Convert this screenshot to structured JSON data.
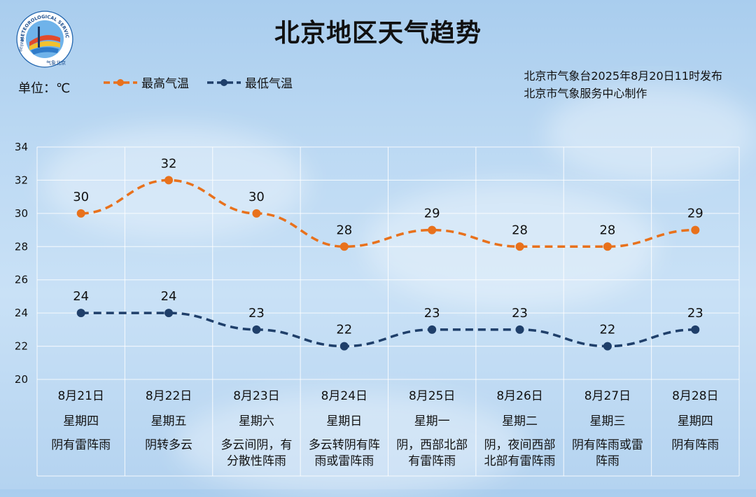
{
  "title": "北京地区天气趋势",
  "unit_label": "单位：℃",
  "legend": {
    "high": "最高气温",
    "low": "最低气温"
  },
  "info": {
    "line1": "北京市气象台2025年8月20日11时发布",
    "line2": "北京市气象服务中心制作"
  },
  "logo": {
    "ring_text": "METEOROLOGICAL SERVICE",
    "bottom_text": "气象北京",
    "left_text": "BEIJING"
  },
  "colors": {
    "high": "#e8711c",
    "low": "#1f3f6a",
    "grid": "#ffffff"
  },
  "days": [
    {
      "date": "8月21日",
      "week": "星期四",
      "weather": [
        "阴有雷阵雨"
      ]
    },
    {
      "date": "8月22日",
      "week": "星期五",
      "weather": [
        "阴转多云"
      ]
    },
    {
      "date": "8月23日",
      "week": "星期六",
      "weather": [
        "多云间阴，有",
        "分散性阵雨"
      ]
    },
    {
      "date": "8月24日",
      "week": "星期日",
      "weather": [
        "多云转阴有阵",
        "雨或雷阵雨"
      ]
    },
    {
      "date": "8月25日",
      "week": "星期一",
      "weather": [
        "阴，西部北部",
        "有雷阵雨"
      ]
    },
    {
      "date": "8月26日",
      "week": "星期二",
      "weather": [
        "阴，夜间西部",
        "北部有雷阵雨"
      ]
    },
    {
      "date": "8月27日",
      "week": "星期三",
      "weather": [
        "阴有阵雨或雷",
        "阵雨"
      ]
    },
    {
      "date": "8月28日",
      "week": "星期四",
      "weather": [
        "阴有阵雨"
      ]
    }
  ],
  "chart_data": {
    "type": "line",
    "categories": [
      "8月21日",
      "8月22日",
      "8月23日",
      "8月24日",
      "8月25日",
      "8月26日",
      "8月27日",
      "8月28日"
    ],
    "series": [
      {
        "name": "最高气温",
        "values": [
          30,
          32,
          30,
          28,
          29,
          28,
          28,
          29
        ]
      },
      {
        "name": "最低气温",
        "values": [
          24,
          24,
          23,
          22,
          23,
          23,
          22,
          23
        ]
      }
    ],
    "ylim": [
      20,
      34
    ],
    "yticks": [
      20,
      22,
      24,
      26,
      28,
      30,
      32,
      34
    ],
    "grid": true,
    "legend_position": "top-left"
  }
}
